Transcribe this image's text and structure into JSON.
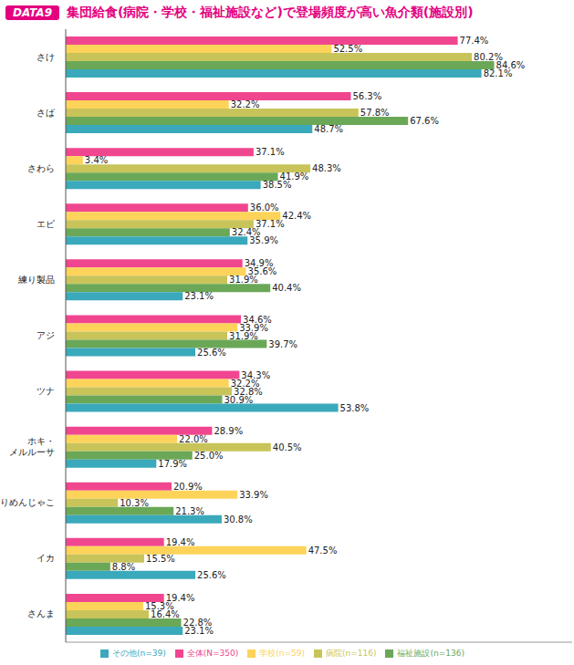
{
  "chart_data": {
    "type": "bar",
    "orientation": "horizontal",
    "title": "集団給食(病院・学校・福祉施設など)で登場頻度が高い魚介類(施設別)",
    "annotations": [
      "DATA9"
    ],
    "categories": [
      "さけ",
      "さば",
      "さわら",
      "エビ",
      "練り製品",
      "アジ",
      "ツナ",
      "ホキ・メルルーサ",
      "ちりめんじゃこ",
      "イカ",
      "さんま"
    ],
    "series": [
      {
        "name": "全体(N=350)",
        "color": "#f0468f",
        "values": [
          77.4,
          56.3,
          37.1,
          36.0,
          34.9,
          34.6,
          34.3,
          28.9,
          20.9,
          19.4,
          19.4
        ],
        "value_labels": [
          "77.4%",
          "56.3%",
          "37.1%",
          "36.0%",
          "34.9%",
          "34.6%",
          "34.3%",
          "28.9%",
          "20.9%",
          "19.4%",
          "19.4%"
        ]
      },
      {
        "name": "学校(n=59)",
        "color": "#fdd35a",
        "values": [
          52.5,
          32.2,
          3.4,
          42.4,
          35.6,
          33.9,
          32.2,
          22.0,
          33.9,
          47.5,
          15.3
        ],
        "value_labels": [
          "52.5%",
          "32.2%",
          "3.4%",
          "42.4%",
          "35.6%",
          "33.9%",
          "32.2%",
          "22.0%",
          "33.9%",
          "47.5%",
          "15.3%"
        ]
      },
      {
        "name": "病院(n=116)",
        "color": "#c8c45a",
        "values": [
          80.2,
          57.8,
          48.3,
          37.1,
          31.9,
          31.9,
          32.8,
          40.5,
          10.3,
          15.5,
          16.4
        ],
        "value_labels": [
          "80.2%",
          "57.8%",
          "48.3%",
          "37.1%",
          "31.9%",
          "31.9%",
          "32.8%",
          "40.5%",
          "10.3%",
          "15.5%",
          "16.4%"
        ]
      },
      {
        "name": "福祉施設(n=136)",
        "color": "#6aa858",
        "values": [
          84.6,
          67.6,
          41.9,
          32.4,
          40.4,
          39.7,
          30.9,
          25.0,
          21.3,
          8.8,
          22.8
        ],
        "value_labels": [
          "84.6%",
          "67.6%",
          "41.9%",
          "32.4%",
          "40.4%",
          "39.7%",
          "30.9%",
          "25.0%",
          "21.3%",
          "8.8%",
          "22.8%"
        ]
      },
      {
        "name": "その他(n=39)",
        "color": "#3aa9bb",
        "values": [
          82.1,
          48.7,
          38.5,
          35.9,
          23.1,
          25.6,
          53.8,
          17.9,
          30.8,
          25.6,
          23.1
        ],
        "value_labels": [
          "82.1%",
          "48.7%",
          "38.5%",
          "35.9%",
          "23.1%",
          "25.6%",
          "53.8%",
          "17.9%",
          "30.8%",
          "25.6%",
          "23.1%"
        ]
      }
    ],
    "xlim": [
      0,
      100
    ],
    "data_labels": true,
    "tick_labels": "y",
    "legend": "bottom",
    "grid": false
  }
}
